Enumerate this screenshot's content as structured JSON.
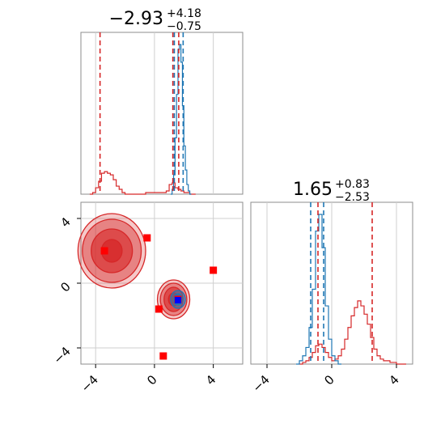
{
  "colors": {
    "series_red": "#d62728",
    "series_blue": "#1f77b4",
    "frame": "#8c8c8c",
    "grid": "#cfcfcf",
    "marker_red": "#ff0000",
    "marker_blue": "#0000ff"
  },
  "chart_data": [
    {
      "type": "area",
      "panel": "top-left marginal histogram of parameter 1",
      "title": {
        "value": "−2.93",
        "upper": "+4.18",
        "lower": "−0.75"
      },
      "xlim": [
        -5,
        6
      ],
      "grid": true,
      "series": [
        {
          "color": "#d62728",
          "x": [
            -4.4,
            -4.2,
            -4.0,
            -3.8,
            -3.6,
            -3.4,
            -3.2,
            -3.0,
            -2.8,
            -2.6,
            -2.4,
            -2.2,
            -2.0,
            -1.8,
            -1.6,
            -1.4,
            -1.2,
            -1.0,
            -0.8,
            -0.6,
            -0.4,
            -0.2,
            0.0,
            0.2,
            0.4,
            0.6,
            0.8,
            1.0,
            1.2,
            1.4,
            1.6,
            1.8,
            2.0,
            2.2,
            2.4,
            2.6
          ],
          "y": [
            0,
            0.01,
            0.04,
            0.08,
            0.13,
            0.14,
            0.13,
            0.12,
            0.09,
            0.05,
            0.03,
            0.01,
            0,
            0,
            0,
            0,
            0,
            0,
            0,
            0.01,
            0.01,
            0.01,
            0.01,
            0.01,
            0.01,
            0.01,
            0.02,
            0.06,
            0.07,
            0.04,
            0.03,
            0.02,
            0.01,
            0.01,
            0,
            0
          ]
        },
        {
          "color": "#1f77b4",
          "x": [
            1.1,
            1.2,
            1.3,
            1.4,
            1.5,
            1.6,
            1.7,
            1.8,
            1.9,
            2.0,
            2.1,
            2.2,
            2.3,
            2.4
          ],
          "y": [
            0,
            0.03,
            0.12,
            0.35,
            0.62,
            0.9,
            0.93,
            0.82,
            0.55,
            0.3,
            0.15,
            0.06,
            0.02,
            0
          ]
        }
      ],
      "vlines": [
        {
          "x": -3.7,
          "color": "#d62728"
        },
        {
          "x": 1.25,
          "color": "#d62728"
        },
        {
          "x": 1.35,
          "color": "#1f77b4"
        },
        {
          "x": 1.65,
          "color": "#d62728"
        },
        {
          "x": 1.95,
          "color": "#1f77b4"
        }
      ]
    },
    {
      "type": "scatter",
      "panel": "bottom-left 2D contour of parameter 1 vs parameter 2",
      "xlim": [
        -5,
        6
      ],
      "ylim": [
        -5,
        5
      ],
      "xticks": [
        "−4",
        "0",
        "4"
      ],
      "yticks": [
        "−4",
        "0",
        "4"
      ],
      "grid": true,
      "contours": [
        {
          "cx": -2.9,
          "cy": 2.0,
          "rx": [
            2.3,
            2.0,
            1.4,
            0.7
          ],
          "ry": [
            2.3,
            1.95,
            1.35,
            0.7
          ],
          "color": "#d62728"
        },
        {
          "cx": 1.3,
          "cy": -1.0,
          "rx": [
            1.1,
            0.9,
            0.65,
            0.35
          ],
          "ry": [
            1.2,
            1.0,
            0.75,
            0.4
          ],
          "color": "#d62728"
        },
        {
          "cx": 1.6,
          "cy": -1.0,
          "rx": [
            0.5,
            0.3
          ],
          "ry": [
            0.55,
            0.35
          ],
          "color": "#1f77b4"
        }
      ],
      "markers_red": [
        {
          "x": -3.4,
          "y": 2.0
        },
        {
          "x": -0.5,
          "y": 2.8
        },
        {
          "x": 4.0,
          "y": 0.8
        },
        {
          "x": 0.3,
          "y": -1.6
        },
        {
          "x": 0.6,
          "y": -4.5
        },
        {
          "x": 1.6,
          "y": -1.0
        }
      ],
      "markers_blue": [
        {
          "x": 1.6,
          "y": -1.05
        }
      ]
    },
    {
      "type": "area",
      "panel": "bottom-right marginal histogram of parameter 2",
      "title": {
        "value": "1.65",
        "upper": "+0.83",
        "lower": "−2.53"
      },
      "xlim": [
        -5,
        5
      ],
      "xticks": [
        "−4",
        "0",
        "4"
      ],
      "grid": true,
      "series": [
        {
          "color": "#d62728",
          "x": [
            -2.0,
            -1.8,
            -1.6,
            -1.4,
            -1.2,
            -1.0,
            -0.8,
            -0.6,
            -0.4,
            -0.2,
            0.0,
            0.2,
            0.4,
            0.6,
            0.8,
            1.0,
            1.2,
            1.4,
            1.6,
            1.8,
            2.0,
            2.2,
            2.4,
            2.6,
            2.8,
            3.0,
            3.2,
            3.4,
            3.6,
            3.8,
            4.0,
            4.2,
            4.4
          ],
          "y": [
            0,
            0.01,
            0.02,
            0.04,
            0.07,
            0.11,
            0.12,
            0.1,
            0.07,
            0.04,
            0.02,
            0.03,
            0.05,
            0.09,
            0.15,
            0.22,
            0.29,
            0.34,
            0.38,
            0.35,
            0.3,
            0.24,
            0.16,
            0.09,
            0.05,
            0.03,
            0.02,
            0.02,
            0.01,
            0.01,
            0,
            0,
            0
          ]
        },
        {
          "color": "#1f77b4",
          "x": [
            -2.2,
            -2.0,
            -1.8,
            -1.6,
            -1.4,
            -1.2,
            -1.0,
            -0.8,
            -0.6,
            -0.4,
            -0.2,
            0.0,
            0.2,
            0.4
          ],
          "y": [
            0,
            0.02,
            0.05,
            0.1,
            0.22,
            0.45,
            0.8,
            0.9,
            0.7,
            0.35,
            0.15,
            0.05,
            0.02,
            0
          ]
        }
      ],
      "vlines": [
        {
          "x": -1.3,
          "color": "#1f77b4"
        },
        {
          "x": -0.85,
          "color": "#d62728"
        },
        {
          "x": -0.5,
          "color": "#1f77b4"
        },
        {
          "x": 2.5,
          "color": "#d62728"
        }
      ]
    }
  ]
}
